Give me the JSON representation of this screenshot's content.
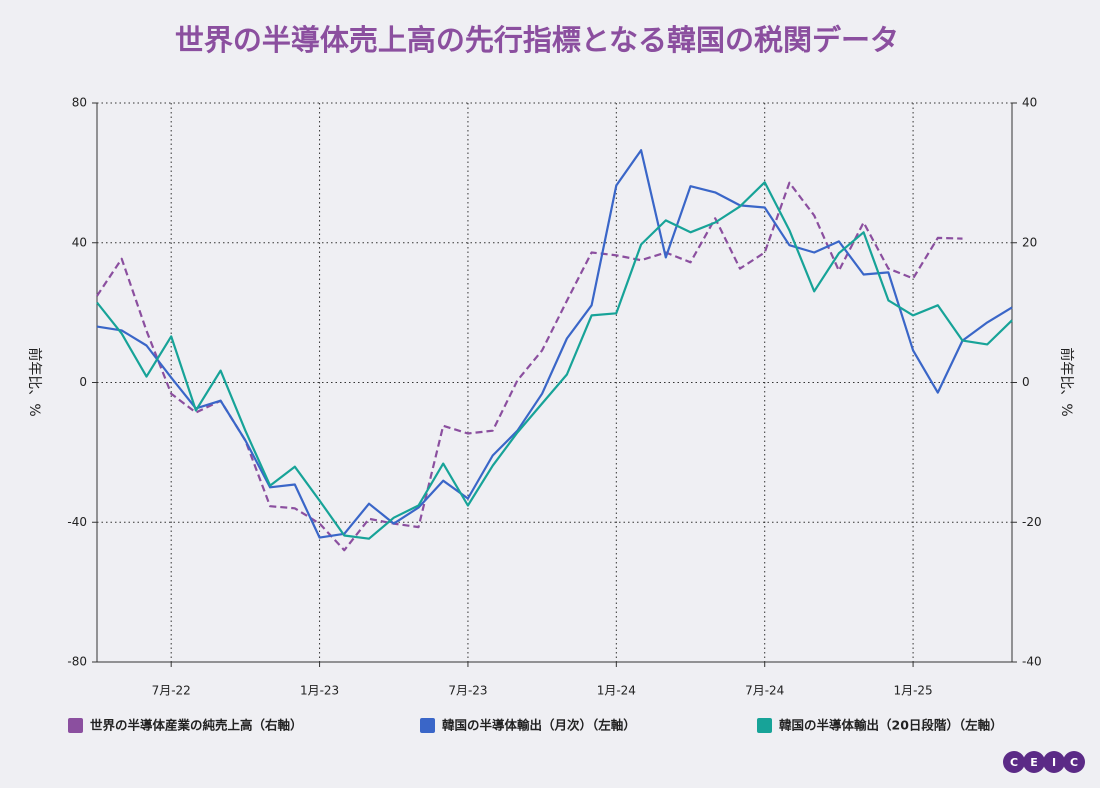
{
  "chart_data": {
    "type": "line",
    "title": "世界の半導体売上高の先行指標となる韓国の税関データ",
    "y_label": "前年比、%",
    "y2_label": "前年比、%",
    "categories": [
      null,
      null,
      null,
      "7月-22",
      null,
      null,
      null,
      null,
      null,
      "1月-23",
      null,
      null,
      null,
      null,
      null,
      "7月-23",
      null,
      null,
      null,
      null,
      null,
      "1月-24",
      null,
      null,
      null,
      null,
      null,
      "7月-24",
      null,
      null,
      null,
      null,
      null,
      "1月-25",
      null,
      null,
      null,
      null
    ],
    "ylim": [
      -80,
      80
    ],
    "yticks": [
      -80,
      -40,
      0,
      40,
      80
    ],
    "y2lim": [
      -40,
      40
    ],
    "y2ticks": [
      -40,
      -20,
      0,
      20,
      40
    ],
    "grid": true,
    "legend": "bottom",
    "logo_letters": [
      "C",
      "E",
      "I",
      "C"
    ],
    "series": [
      {
        "name": "世界の半導体産業の純売上高（右軸）",
        "color": "#8b4f9f",
        "dashed": true,
        "axis": "y2",
        "values": [
          12.4,
          17.7,
          7.4,
          -1.6,
          -4.3,
          -2.6,
          -8.3,
          -17.7,
          -18,
          -20.2,
          -24,
          -19.5,
          -20.2,
          -20.7,
          -6.2,
          -7.3,
          -6.9,
          0.3,
          4.6,
          11.7,
          18.6,
          18.2,
          17.5,
          18.6,
          17.2,
          23.5,
          16.3,
          18.6,
          28.6,
          23.9,
          16,
          22.9,
          16.3,
          14.9,
          20.7,
          20.6,
          null,
          null
        ]
      },
      {
        "name": "韓国の半導体輸出（月次）（左軸）",
        "color": "#3a66c8",
        "dashed": false,
        "axis": "y",
        "values": [
          16,
          14.9,
          10.6,
          1.4,
          -7.4,
          -5.2,
          -16.6,
          -30,
          -29.2,
          -44.4,
          -43.3,
          -34.7,
          -40.4,
          -35.8,
          -28.1,
          -33.2,
          -20.9,
          -13.8,
          -3.2,
          12.6,
          22.1,
          56.4,
          66.5,
          35.8,
          56.2,
          54.4,
          50.7,
          50.1,
          39.3,
          37.2,
          40.4,
          30.9,
          31.5,
          9.2,
          -2.9,
          12,
          17.2,
          21.5
        ]
      },
      {
        "name": "韓国の半導体輸出（20日段階）（左軸）",
        "color": "#17a398",
        "dashed": false,
        "axis": "y",
        "values": [
          22.9,
          14,
          1.7,
          13.2,
          -8,
          3.4,
          -13.8,
          -29.5,
          -24.1,
          -33.8,
          -43.8,
          -44.7,
          -38.7,
          -35.2,
          -23.2,
          -35.2,
          -23.8,
          -14.3,
          -6,
          2.3,
          19.2,
          19.8,
          39.5,
          46.4,
          43,
          45.8,
          50.4,
          57.3,
          43.6,
          26.1,
          37,
          43,
          23.5,
          19.2,
          22.1,
          12,
          10.9,
          17.8
        ]
      }
    ]
  }
}
